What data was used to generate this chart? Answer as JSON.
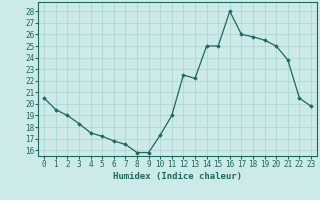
{
  "x": [
    0,
    1,
    2,
    3,
    4,
    5,
    6,
    7,
    8,
    9,
    10,
    11,
    12,
    13,
    14,
    15,
    16,
    17,
    18,
    19,
    20,
    21,
    22,
    23
  ],
  "y": [
    20.5,
    19.5,
    19.0,
    18.3,
    17.5,
    17.2,
    16.8,
    16.5,
    15.8,
    15.8,
    17.3,
    19.0,
    22.5,
    22.2,
    25.0,
    25.0,
    28.0,
    26.0,
    25.8,
    25.5,
    25.0,
    23.8,
    20.5,
    19.8
  ],
  "xlabel": "Humidex (Indice chaleur)",
  "ylim": [
    15.5,
    28.8
  ],
  "xlim": [
    -0.5,
    23.5
  ],
  "yticks": [
    16,
    17,
    18,
    19,
    20,
    21,
    22,
    23,
    24,
    25,
    26,
    27,
    28
  ],
  "xticks": [
    0,
    1,
    2,
    3,
    4,
    5,
    6,
    7,
    8,
    9,
    10,
    11,
    12,
    13,
    14,
    15,
    16,
    17,
    18,
    19,
    20,
    21,
    22,
    23
  ],
  "line_color": "#1a6b5a",
  "marker": "D",
  "marker_size": 1.8,
  "bg_color": "#cceae7",
  "grid_color": "#aad4d0",
  "label_fontsize": 6.5,
  "tick_fontsize": 5.5
}
